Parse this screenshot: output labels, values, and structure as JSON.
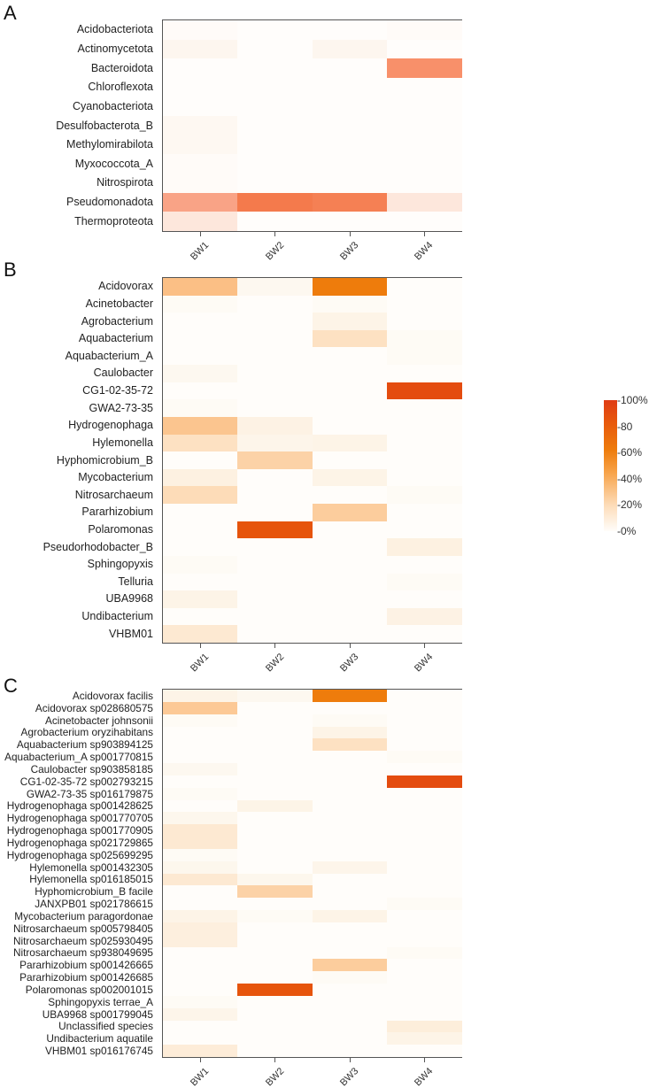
{
  "chart_data": [
    {
      "type": "heatmap",
      "panel": "A",
      "title": "",
      "xlabel": "",
      "ylabel": "",
      "columns": [
        "BW1",
        "BW2",
        "BW3",
        "BW4"
      ],
      "rows": [
        "Acidobacteriota",
        "Actinomycetota",
        "Bacteroidota",
        "Chloroflexota",
        "Cyanobacteriota",
        "Desulfobacterota_B",
        "Methylomirabilota",
        "Myxococcota_A",
        "Nitrospirota",
        "Pseudomonadota",
        "Thermoproteota"
      ],
      "values": [
        [
          0.5,
          0,
          0,
          0.5
        ],
        [
          2,
          0,
          2,
          0
        ],
        [
          0,
          0,
          0,
          55
        ],
        [
          0,
          0,
          0,
          0
        ],
        [
          0,
          0,
          0,
          0
        ],
        [
          1.5,
          0,
          0,
          0
        ],
        [
          1.5,
          0,
          0,
          0
        ],
        [
          0.5,
          0,
          0,
          0
        ],
        [
          0.5,
          0,
          0,
          0
        ],
        [
          45,
          66,
          63,
          12
        ],
        [
          12,
          0,
          0,
          0
        ]
      ],
      "color_low": "#fffdfb",
      "color_high": "#e8451c"
    },
    {
      "type": "heatmap",
      "panel": "B",
      "columns": [
        "BW1",
        "BW2",
        "BW3",
        "BW4"
      ],
      "rows": [
        "Acidovorax",
        "Acinetobacter",
        "Agrobacterium",
        "Aquabacterium",
        "Aquabacterium_A",
        "Caulobacter",
        "CG1-02-35-72",
        "GWA2-73-35",
        "Hydrogenophaga",
        "Hylemonella",
        "Hyphomicrobium_B",
        "Mycobacterium",
        "Nitrosarchaeum",
        "Pararhizobium",
        "Polaromonas",
        "Pseudorhodobacter_B",
        "Sphingopyxis",
        "Telluria",
        "UBA9968",
        "Undibacterium",
        "VHBM01"
      ],
      "values": [
        [
          35,
          2,
          65,
          0
        ],
        [
          1,
          0,
          1,
          0
        ],
        [
          0,
          0,
          5,
          0
        ],
        [
          0,
          0,
          17,
          1
        ],
        [
          0,
          0,
          0,
          1
        ],
        [
          2,
          0,
          0,
          0
        ],
        [
          0,
          0,
          0,
          90
        ],
        [
          1,
          0,
          0,
          0
        ],
        [
          32,
          6,
          0,
          0
        ],
        [
          17,
          4,
          5,
          0
        ],
        [
          0,
          25,
          0,
          0
        ],
        [
          7,
          0,
          5,
          0
        ],
        [
          20,
          0,
          0,
          1
        ],
        [
          0,
          0,
          28,
          0
        ],
        [
          0,
          85,
          0,
          0
        ],
        [
          0,
          0,
          0,
          7
        ],
        [
          1,
          0,
          0,
          0
        ],
        [
          0,
          0,
          0,
          1
        ],
        [
          5,
          0,
          0,
          0
        ],
        [
          0,
          0,
          0,
          6
        ],
        [
          12,
          0,
          0,
          0
        ]
      ]
    },
    {
      "type": "heatmap",
      "panel": "C",
      "columns": [
        "BW1",
        "BW2",
        "BW3",
        "BW4"
      ],
      "rows": [
        "Acidovorax facilis",
        "Acidovorax sp028680575",
        "Acinetobacter johnsonii",
        "Agrobacterium oryzihabitans",
        "Aquabacterium sp903894125",
        "Aquabacterium_A sp001770815",
        "Caulobacter sp903858185",
        "CG1-02-35-72 sp002793215",
        "GWA2-73-35 sp016179875",
        "Hydrogenophaga sp001428625",
        "Hydrogenophaga sp001770705",
        "Hydrogenophaga sp001770905",
        "Hydrogenophaga sp021729865",
        "Hydrogenophaga sp025699295",
        "Hylemonella sp001432305",
        "Hylemonella sp016185015",
        "Hyphomicrobium_B facile",
        "JANXPB01 sp021786615",
        "Mycobacterium paragordonae",
        "Nitrosarchaeum sp005798405",
        "Nitrosarchaeum sp025930495",
        "Nitrosarchaeum sp938049695",
        "Pararhizobium sp001426665",
        "Pararhizobium sp001426685",
        "Polaromonas sp002001015",
        "Sphingopyxis terrae_A",
        "UBA9968 sp001799045",
        "Unclassified species",
        "Undibacterium aquatile",
        "VHBM01 sp016176745"
      ],
      "values": [
        [
          5,
          2,
          65,
          0
        ],
        [
          30,
          0,
          0,
          0
        ],
        [
          1,
          0,
          1,
          0
        ],
        [
          0,
          0,
          5,
          0
        ],
        [
          0,
          0,
          17,
          0
        ],
        [
          0,
          0,
          0,
          1
        ],
        [
          2,
          0,
          0,
          0
        ],
        [
          0,
          0,
          0,
          90
        ],
        [
          1,
          0,
          0,
          0
        ],
        [
          0,
          5,
          0,
          0
        ],
        [
          3,
          0,
          0,
          0
        ],
        [
          12,
          0,
          0,
          0
        ],
        [
          12,
          0,
          0,
          0
        ],
        [
          1,
          0,
          0,
          0
        ],
        [
          3,
          0,
          4,
          0
        ],
        [
          12,
          3,
          0,
          0
        ],
        [
          0,
          25,
          0,
          0
        ],
        [
          0,
          0,
          0,
          1
        ],
        [
          5,
          1,
          5,
          0
        ],
        [
          8,
          0,
          0,
          0
        ],
        [
          8,
          0,
          0,
          0
        ],
        [
          0,
          0,
          0,
          1
        ],
        [
          0,
          0,
          28,
          0
        ],
        [
          0,
          0,
          1,
          0
        ],
        [
          0,
          85,
          0,
          0
        ],
        [
          1,
          0,
          0,
          0
        ],
        [
          4,
          0,
          0,
          0
        ],
        [
          0,
          0,
          0,
          9
        ],
        [
          0,
          0,
          0,
          5
        ],
        [
          10,
          0,
          0,
          0
        ]
      ]
    }
  ],
  "panel_letters": [
    "A",
    "B",
    "C"
  ],
  "legend": {
    "ticks": [
      "100%",
      "80",
      "60%",
      "40%",
      "20%",
      "0%"
    ],
    "tick_values": [
      100,
      80,
      60,
      40,
      20,
      0
    ],
    "range": [
      0,
      100
    ],
    "colors": [
      "#fffdfa",
      "#fddcb8",
      "#f7a248",
      "#ee7c0c",
      "#e85a0c",
      "#df3c14"
    ]
  }
}
